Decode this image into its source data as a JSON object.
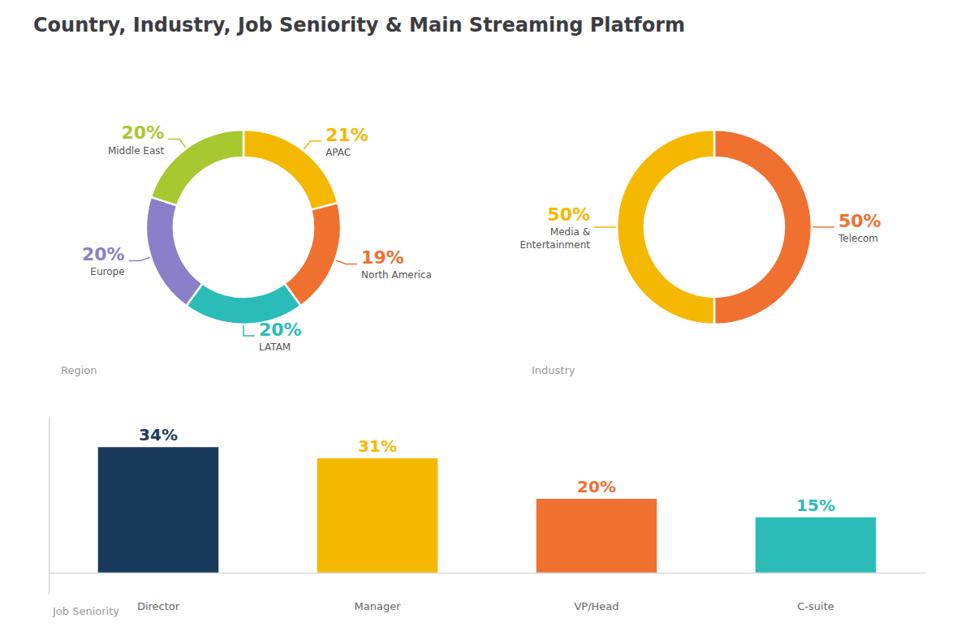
{
  "title": "Country, Industry, Job Seniority & Main Streaming Platform",
  "chart_data": [
    {
      "type": "pie",
      "title": "Region",
      "categories": [
        "APAC",
        "North America",
        "LATAM",
        "Europe",
        "Middle East"
      ],
      "values": [
        21,
        19,
        20,
        20,
        20
      ],
      "value_labels": [
        "21%",
        "19%",
        "20%",
        "20%",
        "20%"
      ],
      "colors": [
        "#f5b800",
        "#f07030",
        "#2bbcb8",
        "#8a7fc8",
        "#a8c830"
      ],
      "data_labels": true
    },
    {
      "type": "pie",
      "title": "Industry",
      "categories": [
        "Telecom",
        "Media &\nEntertainment"
      ],
      "values": [
        50,
        50
      ],
      "value_labels": [
        "50%",
        "50%"
      ],
      "colors": [
        "#f07030",
        "#f5b800"
      ],
      "data_labels": true
    },
    {
      "type": "bar",
      "title": "Job Seniority",
      "categories": [
        "Director",
        "Manager",
        "VP/Head",
        "C-suite"
      ],
      "values": [
        34,
        31,
        20,
        15
      ],
      "value_labels": [
        "34%",
        "31%",
        "20%",
        "15%"
      ],
      "colors": [
        "#1a3a5c",
        "#f5b800",
        "#f07030",
        "#2bbcb8"
      ],
      "ylim": [
        -6,
        42
      ],
      "data_labels": true,
      "grid": false,
      "tick_labels": "x"
    }
  ]
}
